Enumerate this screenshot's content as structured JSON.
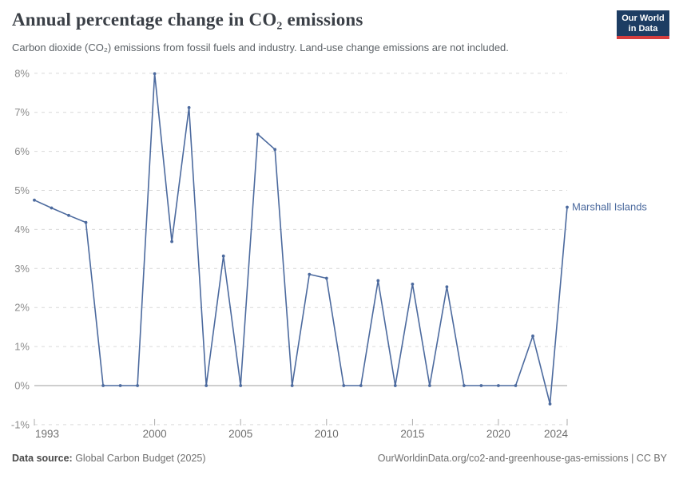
{
  "header": {
    "title": "Annual percentage change in CO₂ emissions",
    "subtitle": "Carbon dioxide (CO₂) emissions from fossil fuels and industry. Land-use change emissions are not included.",
    "logo": {
      "line1": "Our World",
      "line2": "in Data"
    }
  },
  "chart_data": {
    "type": "line",
    "title": "Annual percentage change in CO₂ emissions",
    "x": [
      1993,
      1994,
      1995,
      1996,
      1997,
      1998,
      1999,
      2000,
      2001,
      2002,
      2003,
      2004,
      2005,
      2006,
      2007,
      2008,
      2009,
      2010,
      2011,
      2012,
      2013,
      2014,
      2015,
      2016,
      2017,
      2018,
      2019,
      2020,
      2021,
      2022,
      2023,
      2024
    ],
    "series": [
      {
        "name": "Marshall Islands",
        "values": [
          4.75,
          4.55,
          4.36,
          4.18,
          0,
          0,
          0,
          7.99,
          3.69,
          7.12,
          0,
          3.32,
          0,
          6.44,
          6.05,
          0,
          2.85,
          2.75,
          0,
          0,
          2.69,
          0,
          2.6,
          0,
          2.53,
          0,
          0,
          0,
          0,
          1.27,
          -0.47,
          4.57
        ],
        "color": "#4C6A9E"
      }
    ],
    "xlabel": "",
    "ylabel": "",
    "ylim": [
      -1,
      8
    ],
    "xlim": [
      1993,
      2024
    ],
    "yticks": [
      8,
      7,
      6,
      5,
      4,
      3,
      2,
      1,
      0,
      -1
    ],
    "ytick_labels": [
      "8%",
      "7%",
      "6%",
      "5%",
      "4%",
      "3%",
      "2%",
      "1%",
      "0%",
      "-1%"
    ],
    "xticks": [
      1993,
      2000,
      2005,
      2010,
      2015,
      2020,
      2024
    ],
    "xtick_labels": [
      "1993",
      "2000",
      "2005",
      "2010",
      "2015",
      "2020",
      "2024"
    ],
    "grid": "horizontal-dashed",
    "legend_position": "end-of-line-label",
    "end_label": "Marshall Islands"
  },
  "footer": {
    "source_label": "Data source:",
    "source_value": " Global Carbon Budget (2025)",
    "credit": "OurWorldinData.org/co2-and-greenhouse-gas-emissions | CC BY"
  },
  "colors": {
    "line": "#4C6A9E",
    "grid": "#d9d9d9",
    "zero_line": "#9c9c9c",
    "y_label": "#8a8a8a",
    "x_label": "#707070",
    "logo_navy": "#1d3d63",
    "logo_red": "#d63e3e"
  }
}
